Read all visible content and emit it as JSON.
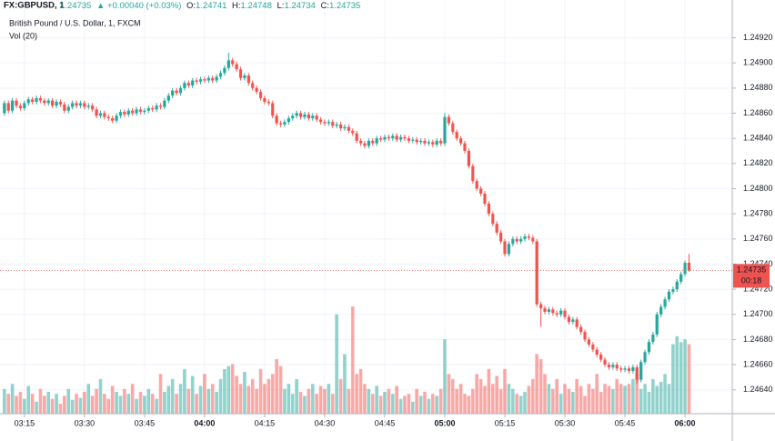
{
  "chart_data": {
    "type": "candlestick",
    "symbol": "FX:GBPUSD, 1",
    "change": "▲ +0.00040 (+0.03%)",
    "labels": {
      "open": "O:",
      "high": "H:",
      "low": "L:",
      "close": "C:"
    },
    "subtitle": "British Pound / U.S. Dollar, 1, FXCM",
    "volume_title": "Vol (20)",
    "countdown": "00:18",
    "up_color": "#26a69a",
    "down_color": "#ef5350",
    "grid": true,
    "xlim": [
      188.9,
      371.8
    ],
    "ylim": [
      1.24621,
      1.24937
    ],
    "volume_ylim": [
      0,
      400
    ],
    "xticks": [
      {
        "value": 195,
        "label": "03:15"
      },
      {
        "value": 210,
        "label": "03:30"
      },
      {
        "value": 225,
        "label": "03:45"
      },
      {
        "value": 240,
        "label": "04:00"
      },
      {
        "value": 255,
        "label": "04:15"
      },
      {
        "value": 270,
        "label": "04:30"
      },
      {
        "value": 285,
        "label": "04:45"
      },
      {
        "value": 300,
        "label": "05:00"
      },
      {
        "value": 315,
        "label": "05:15"
      },
      {
        "value": 330,
        "label": "05:30"
      },
      {
        "value": 345,
        "label": "05:45"
      },
      {
        "value": 360,
        "label": "06:00"
      }
    ],
    "yticks": [
      {
        "value": 1.2464,
        "label": "1.24640"
      },
      {
        "value": 1.2466,
        "label": "1.24660"
      },
      {
        "value": 1.2468,
        "label": "1.24680"
      },
      {
        "value": 1.247,
        "label": "1.24700"
      },
      {
        "value": 1.2472,
        "label": "1.24720"
      },
      {
        "value": 1.2474,
        "label": "1.24740"
      },
      {
        "value": 1.2476,
        "label": "1.24760"
      },
      {
        "value": 1.2478,
        "label": "1.24780"
      },
      {
        "value": 1.248,
        "label": "1.24800"
      },
      {
        "value": 1.2482,
        "label": "1.24820"
      },
      {
        "value": 1.2484,
        "label": "1.24840"
      },
      {
        "value": 1.2486,
        "label": "1.24860"
      },
      {
        "value": 1.2488,
        "label": "1.24880"
      },
      {
        "value": 1.249,
        "label": "1.24900"
      },
      {
        "value": 1.2492,
        "label": "1.24920"
      }
    ],
    "x": [
      190,
      191,
      192,
      193,
      194,
      195,
      196,
      197,
      198,
      199,
      200,
      201,
      202,
      203,
      204,
      205,
      206,
      207,
      208,
      209,
      210,
      211,
      212,
      213,
      214,
      215,
      216,
      217,
      218,
      219,
      220,
      221,
      222,
      223,
      224,
      225,
      226,
      227,
      228,
      229,
      230,
      231,
      232,
      233,
      234,
      235,
      236,
      237,
      238,
      239,
      240,
      241,
      242,
      243,
      244,
      245,
      246,
      247,
      248,
      249,
      250,
      251,
      252,
      253,
      254,
      255,
      256,
      257,
      258,
      259,
      260,
      261,
      262,
      263,
      264,
      265,
      266,
      267,
      268,
      269,
      270,
      271,
      272,
      273,
      274,
      275,
      276,
      277,
      278,
      279,
      280,
      281,
      282,
      283,
      284,
      285,
      286,
      287,
      288,
      289,
      290,
      291,
      292,
      293,
      294,
      295,
      296,
      297,
      298,
      299,
      300,
      301,
      302,
      303,
      304,
      305,
      306,
      307,
      308,
      309,
      310,
      311,
      312,
      313,
      314,
      315,
      316,
      317,
      318,
      319,
      320,
      321,
      322,
      323,
      324,
      325,
      326,
      327,
      328,
      329,
      330,
      331,
      332,
      333,
      334,
      335,
      336,
      337,
      338,
      339,
      340,
      341,
      342,
      343,
      344,
      345,
      346,
      347,
      348,
      349,
      350,
      351,
      352,
      353,
      354,
      355,
      356,
      357,
      358,
      359,
      360,
      361
    ],
    "open": [
      1.2486,
      1.24868,
      1.24862,
      1.2487,
      1.24866,
      1.24864,
      1.24868,
      1.24871,
      1.24869,
      1.24872,
      1.2487,
      1.24868,
      1.2487,
      1.24866,
      1.24869,
      1.24867,
      1.24862,
      1.24865,
      1.24868,
      1.24866,
      1.24868,
      1.24865,
      1.24866,
      1.24863,
      1.24858,
      1.2486,
      1.24857,
      1.24856,
      1.24854,
      1.24858,
      1.24861,
      1.24859,
      1.24862,
      1.2486,
      1.24863,
      1.24861,
      1.24862,
      1.24864,
      1.24863,
      1.24866,
      1.24865,
      1.2487,
      1.24874,
      1.24878,
      1.24876,
      1.2488,
      1.24884,
      1.24882,
      1.24886,
      1.24885,
      1.24887,
      1.24886,
      1.24888,
      1.24886,
      1.24889,
      1.24892,
      1.24896,
      1.24902,
      1.24899,
      1.24895,
      1.24888,
      1.2489,
      1.24884,
      1.2488,
      1.24877,
      1.24872,
      1.24869,
      1.24868,
      1.24858,
      1.24852,
      1.24851,
      1.24853,
      1.24856,
      1.24858,
      1.2486,
      1.24857,
      1.24859,
      1.24856,
      1.24858,
      1.24855,
      1.24853,
      1.24852,
      1.24853,
      1.2485,
      1.24851,
      1.24848,
      1.24849,
      1.24846,
      1.24844,
      1.24838,
      1.24836,
      1.24834,
      1.24838,
      1.24836,
      1.2484,
      1.24839,
      1.24841,
      1.2484,
      1.24842,
      1.24839,
      1.24841,
      1.2484,
      1.24838,
      1.24839,
      1.24837,
      1.24838,
      1.24836,
      1.24837,
      1.24835,
      1.24838,
      1.24836,
      1.24857,
      1.24852,
      1.24845,
      1.2484,
      1.24836,
      1.2483,
      1.24818,
      1.24806,
      1.248,
      1.24796,
      1.24788,
      1.2478,
      1.24772,
      1.24765,
      1.24758,
      1.24748,
      1.24756,
      1.2476,
      1.24758,
      1.2476,
      1.24762,
      1.24761,
      1.24758,
      1.24708,
      1.24705,
      1.24702,
      1.24704,
      1.24701,
      1.247,
      1.24703,
      1.24698,
      1.24694,
      1.24696,
      1.2469,
      1.24686,
      1.2468,
      1.24676,
      1.24672,
      1.24668,
      1.24664,
      1.2466,
      1.24658,
      1.2466,
      1.24657,
      1.24656,
      1.24657,
      1.24655,
      1.24658,
      1.24648,
      1.24662,
      1.2467,
      1.24678,
      1.24684,
      1.247,
      1.24706,
      1.24712,
      1.24718,
      1.2472,
      1.24726,
      1.24732,
      1.24741
    ],
    "high": [
      1.2487,
      1.2487,
      1.24872,
      1.24872,
      1.24868,
      1.2487,
      1.24873,
      1.24873,
      1.24874,
      1.24874,
      1.24872,
      1.24872,
      1.24872,
      1.24871,
      1.24871,
      1.24869,
      1.24867,
      1.2487,
      1.2487,
      1.2487,
      1.2487,
      1.24868,
      1.24868,
      1.24865,
      1.24862,
      1.24862,
      1.24859,
      1.24858,
      1.2486,
      1.24863,
      1.24863,
      1.24864,
      1.24864,
      1.24865,
      1.24865,
      1.24864,
      1.24866,
      1.24866,
      1.24868,
      1.24868,
      1.24872,
      1.24876,
      1.2488,
      1.2488,
      1.24882,
      1.24886,
      1.24886,
      1.24888,
      1.24888,
      1.24889,
      1.24889,
      1.2489,
      1.2489,
      1.24891,
      1.24894,
      1.24898,
      1.24908,
      1.24904,
      1.24901,
      1.24897,
      1.24892,
      1.24892,
      1.24886,
      1.24882,
      1.24879,
      1.24874,
      1.24871,
      1.2487,
      1.2486,
      1.24854,
      1.24855,
      1.24858,
      1.2486,
      1.24862,
      1.24862,
      1.24861,
      1.24861,
      1.2486,
      1.2486,
      1.24857,
      1.24855,
      1.24855,
      1.24855,
      1.24853,
      1.24853,
      1.24851,
      1.24851,
      1.24848,
      1.24846,
      1.2484,
      1.24838,
      1.2484,
      1.2484,
      1.24842,
      1.24842,
      1.24843,
      1.24843,
      1.24844,
      1.24844,
      1.24843,
      1.24843,
      1.24842,
      1.24841,
      1.24841,
      1.2484,
      1.2484,
      1.24839,
      1.24839,
      1.2484,
      1.2484,
      1.2486,
      1.24859,
      1.24854,
      1.24847,
      1.24842,
      1.24838,
      1.24832,
      1.2482,
      1.24808,
      1.24802,
      1.24798,
      1.2479,
      1.24782,
      1.24774,
      1.24767,
      1.2476,
      1.24758,
      1.24762,
      1.24762,
      1.24762,
      1.24764,
      1.24764,
      1.24763,
      1.2476,
      1.2471,
      1.24707,
      1.24706,
      1.24706,
      1.24703,
      1.24705,
      1.24705,
      1.247,
      1.24698,
      1.24698,
      1.24692,
      1.24688,
      1.24682,
      1.24678,
      1.24674,
      1.2467,
      1.24666,
      1.24662,
      1.24662,
      1.24662,
      1.24659,
      1.24659,
      1.24659,
      1.2466,
      1.2466,
      1.24664,
      1.24672,
      1.2468,
      1.24686,
      1.24702,
      1.24708,
      1.24714,
      1.2472,
      1.24722,
      1.24728,
      1.24734,
      1.24743,
      1.24748
    ],
    "low": [
      1.24858,
      1.2486,
      1.2486,
      1.24864,
      1.24862,
      1.24862,
      1.24866,
      1.24867,
      1.24867,
      1.24868,
      1.24866,
      1.24866,
      1.24864,
      1.24864,
      1.24865,
      1.2486,
      1.2486,
      1.24863,
      1.24864,
      1.24864,
      1.24863,
      1.24863,
      1.24861,
      1.24856,
      1.24856,
      1.24855,
      1.24854,
      1.24852,
      1.24852,
      1.24856,
      1.24857,
      1.24857,
      1.24858,
      1.24858,
      1.24859,
      1.24859,
      1.2486,
      1.24861,
      1.24861,
      1.24863,
      1.24863,
      1.24868,
      1.24872,
      1.24874,
      1.24874,
      1.24878,
      1.2488,
      1.2488,
      1.24883,
      1.24883,
      1.24884,
      1.24884,
      1.24884,
      1.24884,
      1.24887,
      1.2489,
      1.24894,
      1.24897,
      1.24893,
      1.24886,
      1.24886,
      1.24882,
      1.24878,
      1.24875,
      1.2487,
      1.24867,
      1.24866,
      1.24856,
      1.2485,
      1.24849,
      1.24849,
      1.24851,
      1.24854,
      1.24856,
      1.24855,
      1.24855,
      1.24854,
      1.24854,
      1.24853,
      1.24851,
      1.2485,
      1.2485,
      1.24848,
      1.24848,
      1.24846,
      1.24846,
      1.24844,
      1.24842,
      1.24836,
      1.24834,
      1.24832,
      1.24832,
      1.24834,
      1.24834,
      1.24837,
      1.24837,
      1.24838,
      1.24838,
      1.24837,
      1.24837,
      1.24838,
      1.24836,
      1.24836,
      1.24835,
      1.24835,
      1.24834,
      1.24834,
      1.24833,
      1.24833,
      1.24834,
      1.24834,
      1.2485,
      1.24843,
      1.24838,
      1.24834,
      1.24828,
      1.24816,
      1.24804,
      1.24798,
      1.24794,
      1.24786,
      1.24778,
      1.2477,
      1.24763,
      1.24756,
      1.24746,
      1.24746,
      1.24754,
      1.24756,
      1.24756,
      1.24758,
      1.24759,
      1.24756,
      1.24706,
      1.2469,
      1.247,
      1.247,
      1.24699,
      1.24698,
      1.24698,
      1.24696,
      1.24692,
      1.24692,
      1.24688,
      1.24684,
      1.24678,
      1.24674,
      1.2467,
      1.24666,
      1.24662,
      1.24658,
      1.24656,
      1.24656,
      1.24655,
      1.24654,
      1.24654,
      1.24653,
      1.24653,
      1.24645,
      1.24646,
      1.2466,
      1.24668,
      1.24676,
      1.24682,
      1.24698,
      1.24704,
      1.2471,
      1.24716,
      1.24718,
      1.24724,
      1.2473,
      1.24734
    ],
    "close": [
      1.24868,
      1.24862,
      1.2487,
      1.24866,
      1.24864,
      1.24868,
      1.24871,
      1.24869,
      1.24872,
      1.2487,
      1.24868,
      1.2487,
      1.24866,
      1.24869,
      1.24867,
      1.24862,
      1.24865,
      1.24868,
      1.24866,
      1.24868,
      1.24865,
      1.24866,
      1.24863,
      1.24858,
      1.2486,
      1.24857,
      1.24856,
      1.24854,
      1.24858,
      1.24861,
      1.24859,
      1.24862,
      1.2486,
      1.24863,
      1.24861,
      1.24862,
      1.24864,
      1.24863,
      1.24866,
      1.24865,
      1.2487,
      1.24874,
      1.24878,
      1.24876,
      1.2488,
      1.24884,
      1.24882,
      1.24886,
      1.24885,
      1.24887,
      1.24886,
      1.24888,
      1.24886,
      1.24889,
      1.24892,
      1.24896,
      1.24902,
      1.24899,
      1.24895,
      1.24888,
      1.2489,
      1.24884,
      1.2488,
      1.24877,
      1.24872,
      1.24869,
      1.24868,
      1.24858,
      1.24852,
      1.24851,
      1.24853,
      1.24856,
      1.24858,
      1.2486,
      1.24857,
      1.24859,
      1.24856,
      1.24858,
      1.24855,
      1.24853,
      1.24852,
      1.24853,
      1.2485,
      1.24851,
      1.24848,
      1.24849,
      1.24846,
      1.24844,
      1.24838,
      1.24836,
      1.24834,
      1.24838,
      1.24836,
      1.2484,
      1.24839,
      1.24841,
      1.2484,
      1.24842,
      1.24839,
      1.24841,
      1.2484,
      1.24838,
      1.24839,
      1.24837,
      1.24838,
      1.24836,
      1.24837,
      1.24835,
      1.24838,
      1.24836,
      1.24857,
      1.24852,
      1.24845,
      1.2484,
      1.24836,
      1.2483,
      1.24818,
      1.24806,
      1.248,
      1.24796,
      1.24788,
      1.2478,
      1.24772,
      1.24765,
      1.24758,
      1.24748,
      1.24756,
      1.2476,
      1.24758,
      1.2476,
      1.24762,
      1.24761,
      1.24758,
      1.24708,
      1.24705,
      1.24702,
      1.24704,
      1.24701,
      1.247,
      1.24703,
      1.24698,
      1.24694,
      1.24696,
      1.2469,
      1.24686,
      1.2468,
      1.24676,
      1.24672,
      1.24668,
      1.24664,
      1.2466,
      1.24658,
      1.2466,
      1.24657,
      1.24656,
      1.24657,
      1.24655,
      1.24658,
      1.24648,
      1.24662,
      1.2467,
      1.24678,
      1.24684,
      1.247,
      1.24706,
      1.24712,
      1.24718,
      1.2472,
      1.24726,
      1.24732,
      1.24741,
      1.24735
    ],
    "volume": [
      25,
      20,
      30,
      18,
      22,
      15,
      28,
      20,
      12,
      25,
      18,
      22,
      15,
      20,
      10,
      18,
      25,
      14,
      20,
      16,
      22,
      30,
      18,
      25,
      35,
      20,
      15,
      28,
      22,
      18,
      25,
      20,
      30,
      15,
      22,
      18,
      25,
      20,
      15,
      40,
      22,
      28,
      35,
      20,
      30,
      45,
      25,
      38,
      20,
      28,
      40,
      25,
      30,
      22,
      35,
      45,
      48,
      50,
      38,
      30,
      42,
      28,
      35,
      25,
      45,
      30,
      35,
      40,
      55,
      48,
      25,
      30,
      20,
      35,
      22,
      18,
      25,
      30,
      20,
      28,
      25,
      30,
      20,
      100,
      35,
      60,
      25,
      108,
      40,
      45,
      30,
      25,
      20,
      28,
      18,
      22,
      25,
      20,
      28,
      15,
      18,
      20,
      12,
      25,
      18,
      22,
      15,
      20,
      18,
      25,
      75,
      40,
      35,
      25,
      30,
      20,
      18,
      25,
      40,
      35,
      28,
      45,
      30,
      38,
      25,
      45,
      30,
      25,
      20,
      18,
      22,
      28,
      35,
      60,
      55,
      40,
      30,
      25,
      35,
      20,
      30,
      25,
      22,
      35,
      28,
      18,
      30,
      25,
      40,
      22,
      30,
      28,
      25,
      35,
      30,
      28,
      30,
      35,
      40,
      25,
      30,
      22,
      35,
      28,
      32,
      40,
      30,
      70,
      78,
      72,
      75,
      70
    ]
  }
}
